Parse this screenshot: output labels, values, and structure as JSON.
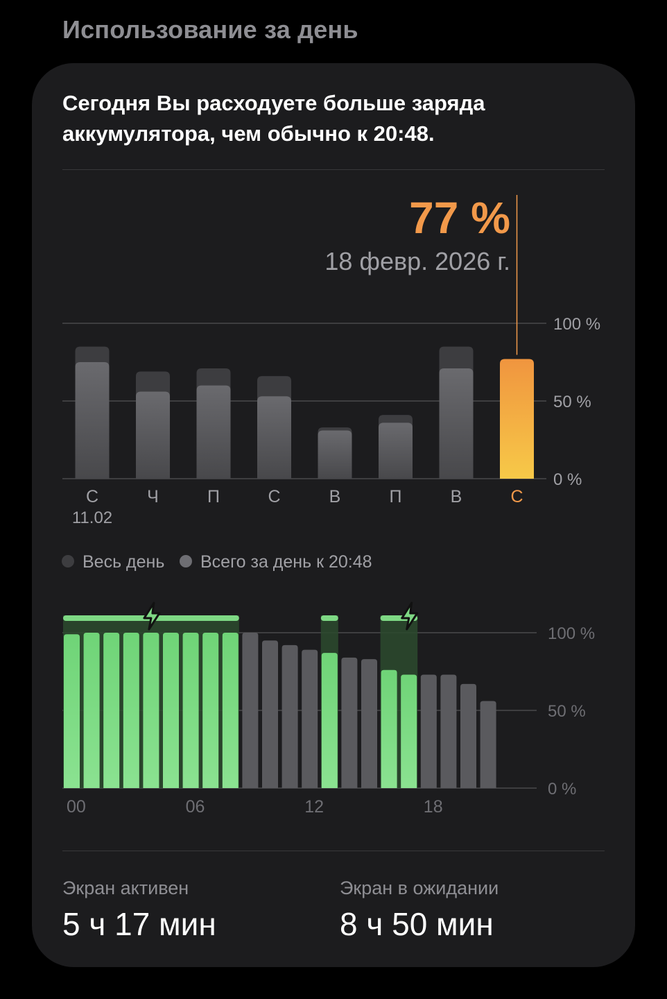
{
  "section_title": "Использование за день",
  "headline": "Сегодня Вы расходуете больше заряда аккумулятора, чем обычно к 20:48.",
  "callout": {
    "value": "77 %",
    "date": "18 февр. 2026 г."
  },
  "colors": {
    "accent": "#f2994a",
    "accent_top": "#f0953f",
    "accent_bottom": "#f7c948",
    "bar_gray": "#5a5a5e",
    "bar_gray_dark": "#3d3d40",
    "green": "#7ed884",
    "green_dark": "#2c4a2e",
    "grid": "#4a4a4c",
    "muted": "#8e8e93"
  },
  "legend": [
    {
      "label": "Весь день"
    },
    {
      "label": "Всего за день к 20:48"
    }
  ],
  "stats": {
    "screen_on_label": "Экран активен",
    "screen_on_value": "5 ч 17 мин",
    "screen_off_label": "Экран в ожидании",
    "screen_off_value": "8 ч 50 мин"
  },
  "chart_data": [
    {
      "type": "bar",
      "categories": [
        "С",
        "Ч",
        "П",
        "С",
        "В",
        "П",
        "В",
        "С"
      ],
      "x_sublabels": [
        "11.02",
        "",
        "",
        "",
        "",
        "",
        "",
        ""
      ],
      "series": [
        {
          "name": "Весь день",
          "values": [
            85,
            69,
            71,
            66,
            33,
            41,
            85,
            77
          ]
        },
        {
          "name": "Всего за день к 20:48",
          "values": [
            75,
            56,
            60,
            53,
            31,
            36,
            71,
            77
          ]
        }
      ],
      "highlight_index": 7,
      "yticks": [
        "100 %",
        "50 %",
        "0 %"
      ],
      "ylim": [
        0,
        100
      ],
      "grid": true
    },
    {
      "type": "bar",
      "categories": [
        "00",
        "01",
        "02",
        "03",
        "04",
        "05",
        "06",
        "07",
        "08",
        "09",
        "10",
        "11",
        "12",
        "13",
        "14",
        "15",
        "16",
        "17",
        "18",
        "19",
        "20",
        "21",
        "22",
        "23"
      ],
      "xtick_labels": [
        "00",
        "06",
        "12",
        "18"
      ],
      "battery_level": [
        99,
        100,
        100,
        100,
        100,
        100,
        100,
        100,
        100,
        100,
        95,
        92,
        89,
        87,
        84,
        83,
        76,
        73,
        73,
        73,
        67,
        56,
        null,
        null
      ],
      "charging_hours": [
        0,
        1,
        2,
        3,
        4,
        5,
        6,
        7,
        8,
        13,
        16,
        17
      ],
      "charging_icon_hours": [
        4,
        17
      ],
      "yticks": [
        "100 %",
        "50 %",
        "0 %"
      ],
      "ylim": [
        0,
        100
      ],
      "grid": true
    }
  ]
}
